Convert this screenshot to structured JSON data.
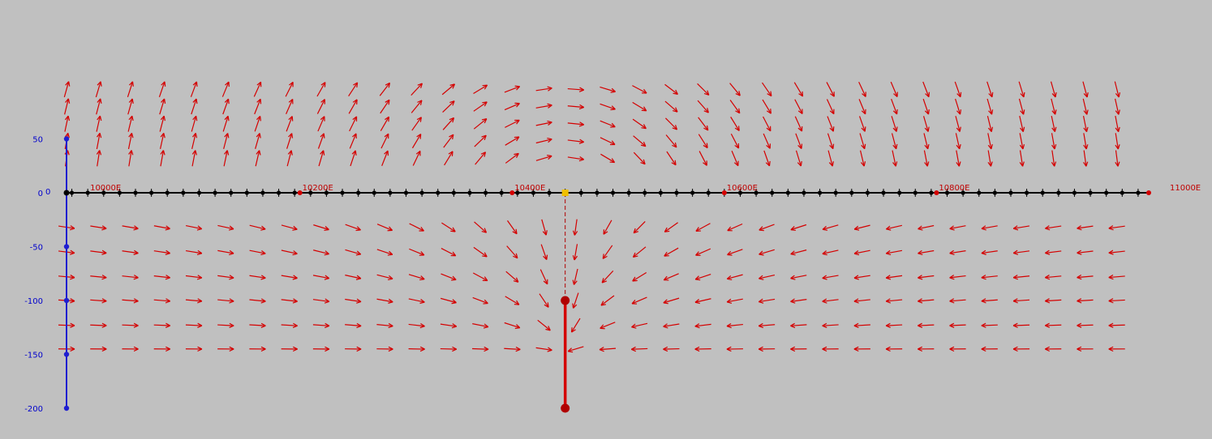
{
  "chart_data": {
    "type": "vector-field",
    "colors": {
      "background": "#c0c0c0",
      "arrow": "#d40000",
      "y_axis": "#1f1fd0",
      "x_axis": "#000000",
      "station_marker": "#d40000",
      "source": "#b00000",
      "origin_marker": "#f0c000"
    },
    "x_axis": {
      "range": [
        9980,
        11000
      ],
      "ticks": [
        {
          "value": 10000,
          "label": "10000E"
        },
        {
          "value": 10200,
          "label": "10200E"
        },
        {
          "value": 10400,
          "label": "10400E"
        },
        {
          "value": 10600,
          "label": "10600E"
        },
        {
          "value": 10800,
          "label": "10800E"
        },
        {
          "value": 11000,
          "label": "11000E"
        }
      ],
      "station_spacing": 15,
      "red_stations": [
        10200,
        10400,
        10600,
        10800,
        11000
      ]
    },
    "y_axis": {
      "range": [
        -200,
        50
      ],
      "ticks": [
        {
          "value": 50,
          "label": "50"
        },
        {
          "value": 0,
          "label": "0"
        },
        {
          "value": -50,
          "label": "-50"
        },
        {
          "value": -100,
          "label": "-100"
        },
        {
          "value": -150,
          "label": "-150"
        },
        {
          "value": -200,
          "label": "-200"
        }
      ],
      "endpoint_dots": [
        50,
        -50,
        -100,
        -150,
        -200
      ]
    },
    "origin_label": "0",
    "source": {
      "x": 10450,
      "top": -100,
      "bottom": -200,
      "dashed_from": 0
    },
    "field": {
      "columns": 34,
      "x_start": 9980,
      "x_step": 30,
      "above_rows": [
        96,
        80,
        64,
        48,
        32
      ],
      "below_rows": [
        -32,
        -55,
        -78,
        -100,
        -123,
        -145
      ]
    }
  }
}
